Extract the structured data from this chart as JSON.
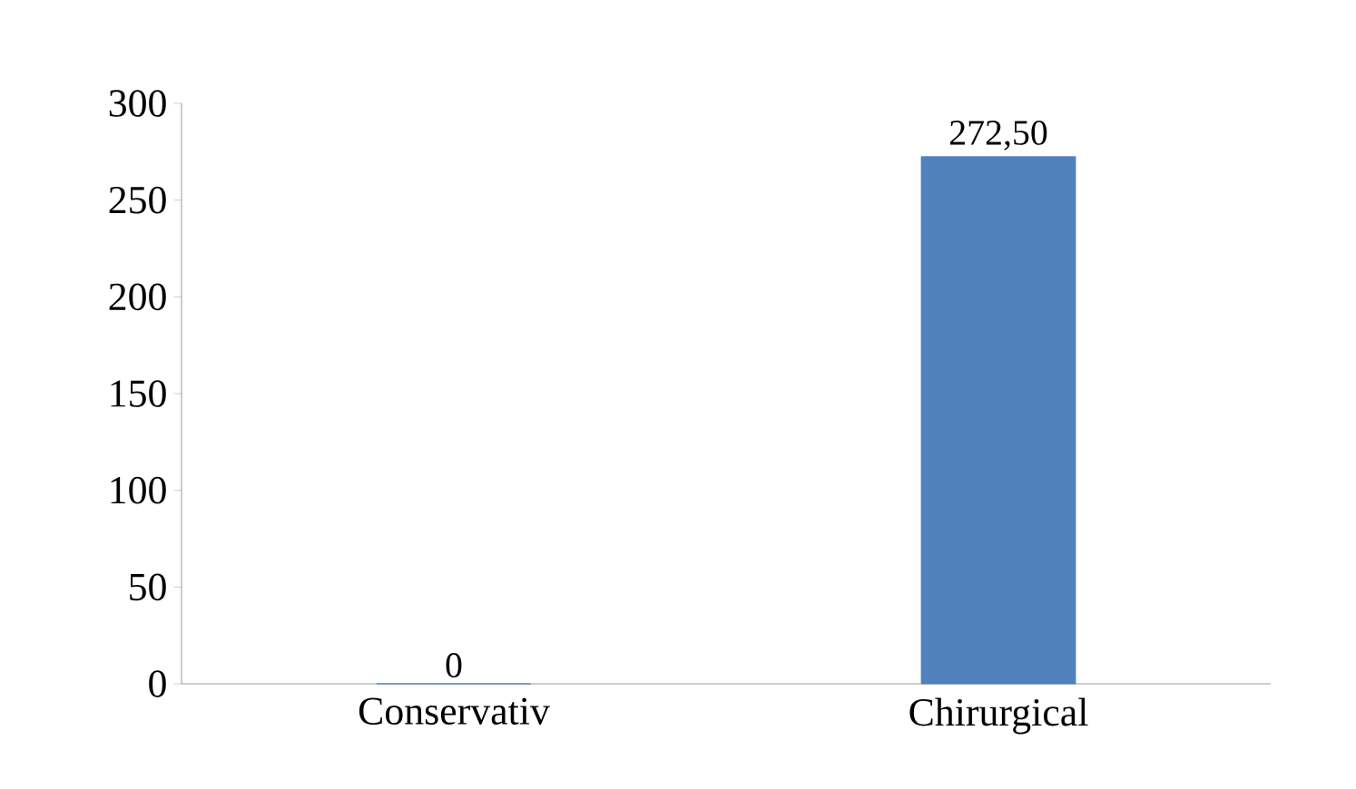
{
  "chart_data": {
    "type": "bar",
    "categories": [
      "Conservativ",
      "Chirurgical"
    ],
    "values": [
      0,
      272.5
    ],
    "value_labels": [
      "0",
      "272,50"
    ],
    "color": "#4f81bd",
    "ylim": [
      0,
      300
    ],
    "yticks": [
      0,
      50,
      100,
      150,
      200,
      250,
      300
    ],
    "grid": false
  }
}
